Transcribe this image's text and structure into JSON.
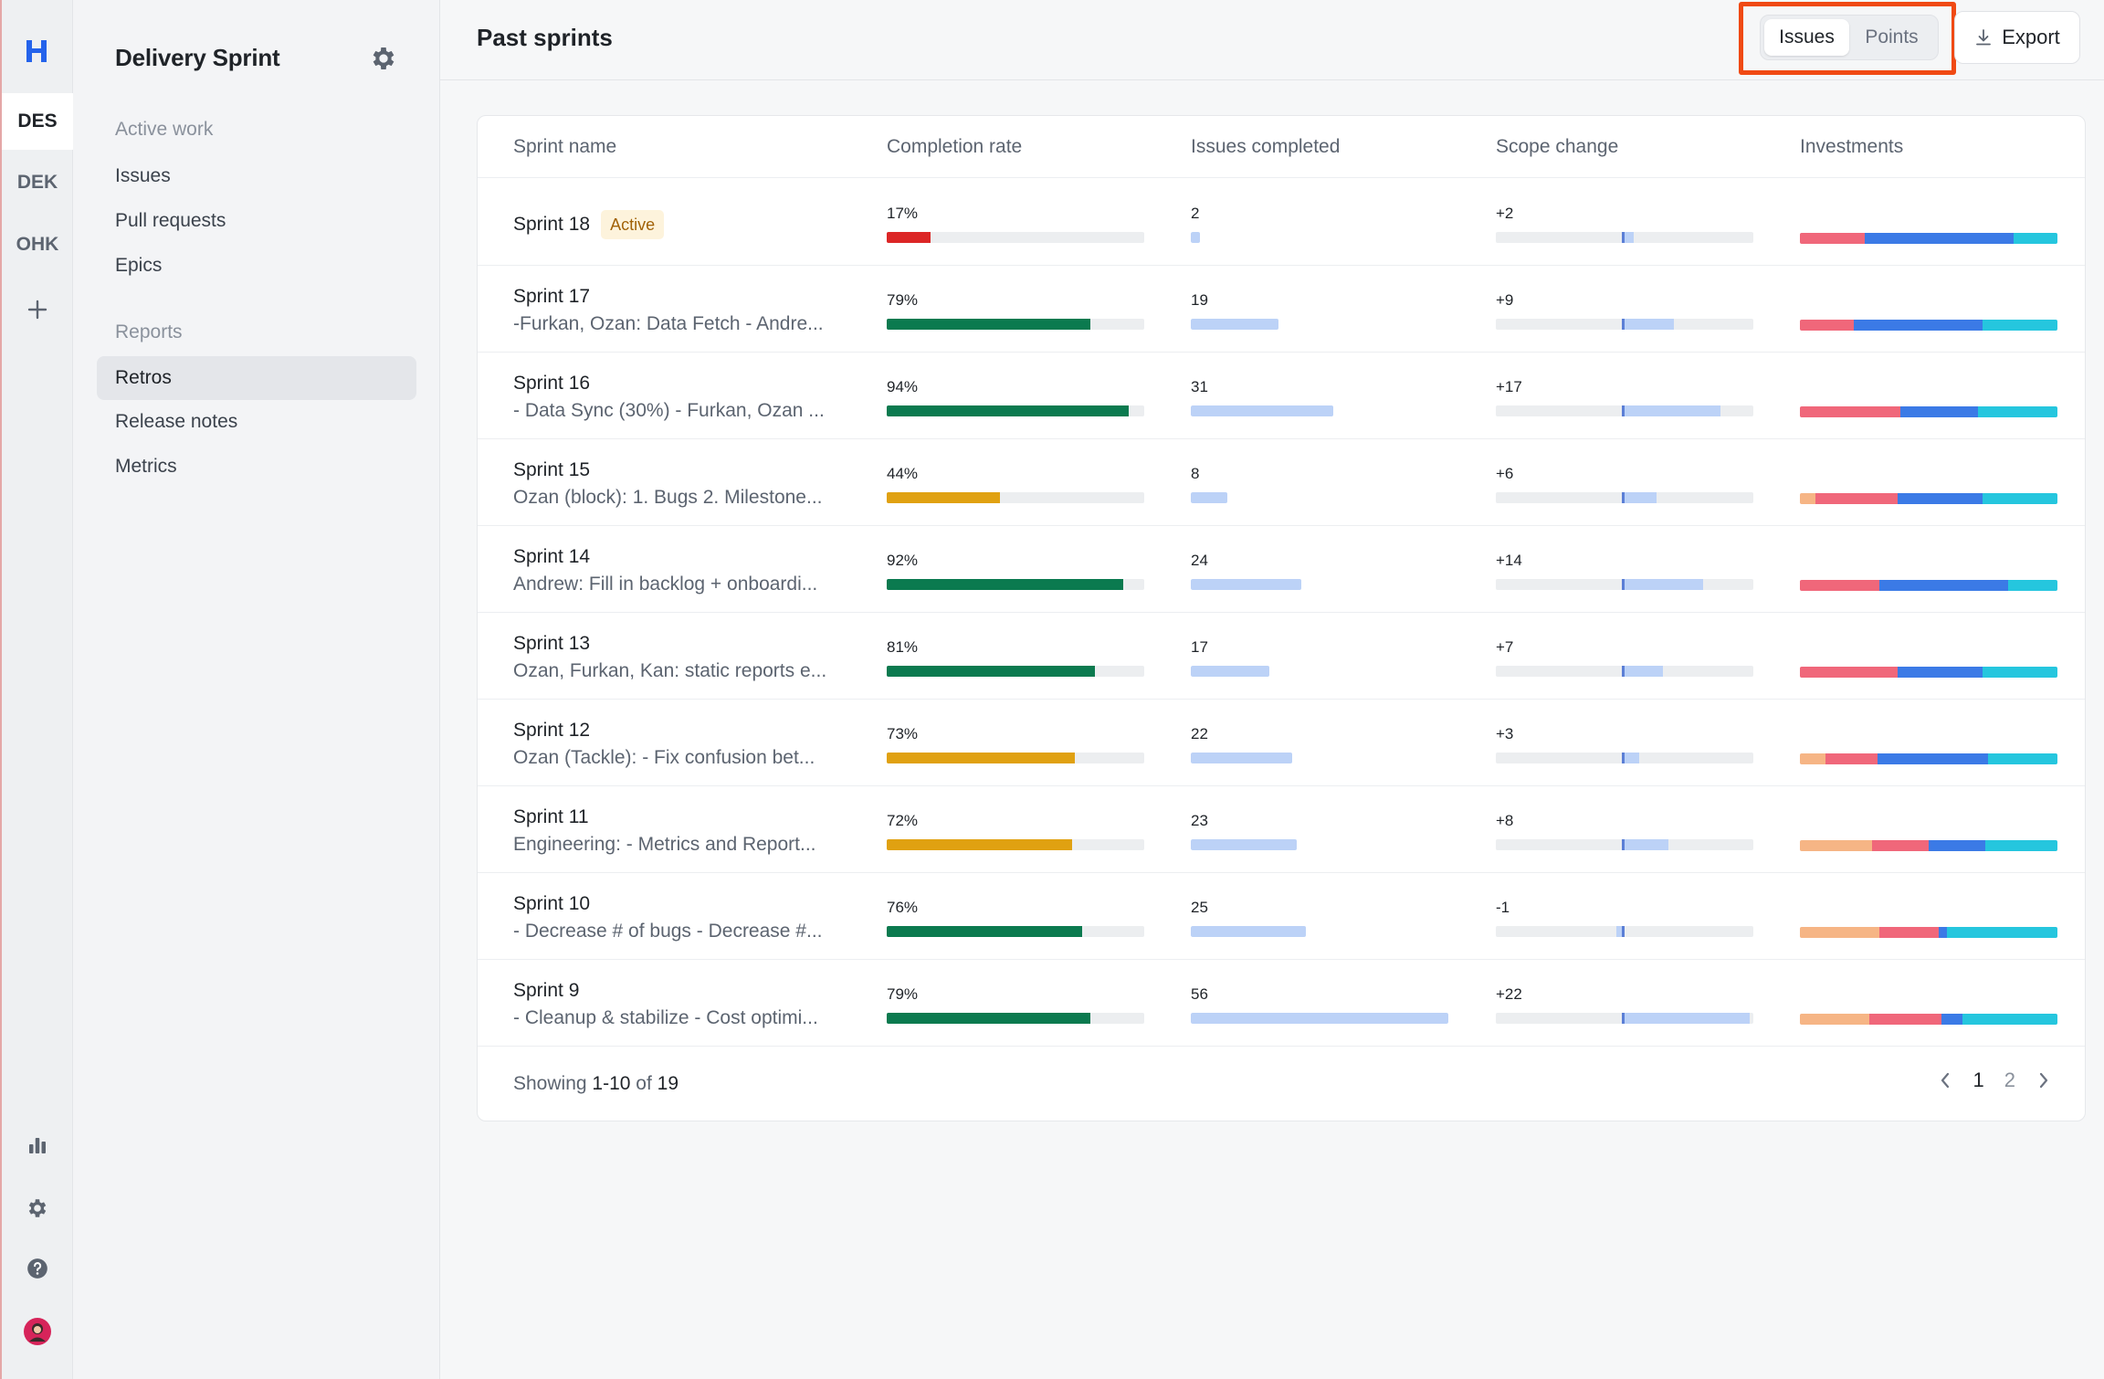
{
  "rail": {
    "logo": "H",
    "workspaces": [
      "DES",
      "DEK",
      "OHK"
    ]
  },
  "sidebar": {
    "title": "Delivery Sprint",
    "sections": [
      {
        "label": "Active work",
        "items": [
          "Issues",
          "Pull requests",
          "Epics"
        ]
      },
      {
        "label": "Reports",
        "items": [
          "Retros",
          "Release notes",
          "Metrics"
        ]
      }
    ],
    "active_item": "Retros"
  },
  "header": {
    "title": "Past sprints",
    "toggle": {
      "options": [
        "Issues",
        "Points"
      ],
      "selected": "Issues"
    },
    "export_label": "Export"
  },
  "table": {
    "columns": [
      "Sprint name",
      "Completion rate",
      "Issues completed",
      "Scope change",
      "Investments"
    ],
    "rows": [
      {
        "name": "Sprint 18",
        "badge": "Active",
        "subtitle": "",
        "completion": "17%",
        "completion_value": 17,
        "issues": "2",
        "issues_value": 2,
        "scope": "+2",
        "scope_value": 2
      },
      {
        "name": "Sprint 17",
        "badge": "",
        "subtitle": "-Furkan, Ozan: Data Fetch - Andre...",
        "completion": "79%",
        "completion_value": 79,
        "issues": "19",
        "issues_value": 19,
        "scope": "+9",
        "scope_value": 9
      },
      {
        "name": "Sprint 16",
        "badge": "",
        "subtitle": "- Data Sync (30%) - Furkan, Ozan ...",
        "completion": "94%",
        "completion_value": 94,
        "issues": "31",
        "issues_value": 31,
        "scope": "+17",
        "scope_value": 17
      },
      {
        "name": "Sprint 15",
        "badge": "",
        "subtitle": "Ozan (block): 1. Bugs 2. Milestone...",
        "completion": "44%",
        "completion_value": 44,
        "issues": "8",
        "issues_value": 8,
        "scope": "+6",
        "scope_value": 6
      },
      {
        "name": "Sprint 14",
        "badge": "",
        "subtitle": "Andrew: Fill in backlog + onboardi...",
        "completion": "92%",
        "completion_value": 92,
        "issues": "24",
        "issues_value": 24,
        "scope": "+14",
        "scope_value": 14
      },
      {
        "name": "Sprint 13",
        "badge": "",
        "subtitle": "Ozan, Furkan, Kan: static reports e...",
        "completion": "81%",
        "completion_value": 81,
        "issues": "17",
        "issues_value": 17,
        "scope": "+7",
        "scope_value": 7
      },
      {
        "name": "Sprint 12",
        "badge": "",
        "subtitle": "Ozan (Tackle): - Fix confusion bet...",
        "completion": "73%",
        "completion_value": 73,
        "issues": "22",
        "issues_value": 22,
        "scope": "+3",
        "scope_value": 3
      },
      {
        "name": "Sprint 11",
        "badge": "",
        "subtitle": "Engineering: - Metrics and Report...",
        "completion": "72%",
        "completion_value": 72,
        "issues": "23",
        "issues_value": 23,
        "scope": "+8",
        "scope_value": 8
      },
      {
        "name": "Sprint 10",
        "badge": "",
        "subtitle": "- Decrease # of bugs - Decrease #...",
        "completion": "76%",
        "completion_value": 76,
        "issues": "25",
        "issues_value": 25,
        "scope": "-1",
        "scope_value": -1
      },
      {
        "name": "Sprint 9",
        "badge": "",
        "subtitle": "- Cleanup & stabilize - Cost optimi...",
        "completion": "79%",
        "completion_value": 79,
        "issues": "56",
        "issues_value": 56,
        "scope": "+22",
        "scope_value": 22
      }
    ],
    "investments": [
      [
        0,
        0.25,
        0.58,
        0.17
      ],
      [
        0,
        0.21,
        0.5,
        0.29
      ],
      [
        0,
        0.39,
        0.3,
        0.31
      ],
      [
        0.06,
        0.32,
        0.33,
        0.29
      ],
      [
        0,
        0.31,
        0.5,
        0.19
      ],
      [
        0,
        0.38,
        0.33,
        0.29
      ],
      [
        0.1,
        0.2,
        0.43,
        0.27
      ],
      [
        0.28,
        0.22,
        0.22,
        0.28
      ],
      [
        0.31,
        0.23,
        0.03,
        0.43
      ],
      [
        0.27,
        0.28,
        0.08,
        0.37
      ]
    ],
    "investment_colors": [
      "#f6b585",
      "#f0677a",
      "#3b7ae6",
      "#25c6de"
    ],
    "completion_colors": {
      "low": "#dc2626",
      "mid": "#e0a111",
      "high": "#0b7a4f"
    },
    "footer": {
      "showing_prefix": "Showing",
      "range": "1-10",
      "of": "of",
      "total": "19"
    },
    "pages": [
      "1",
      "2"
    ],
    "current_page": "1"
  }
}
